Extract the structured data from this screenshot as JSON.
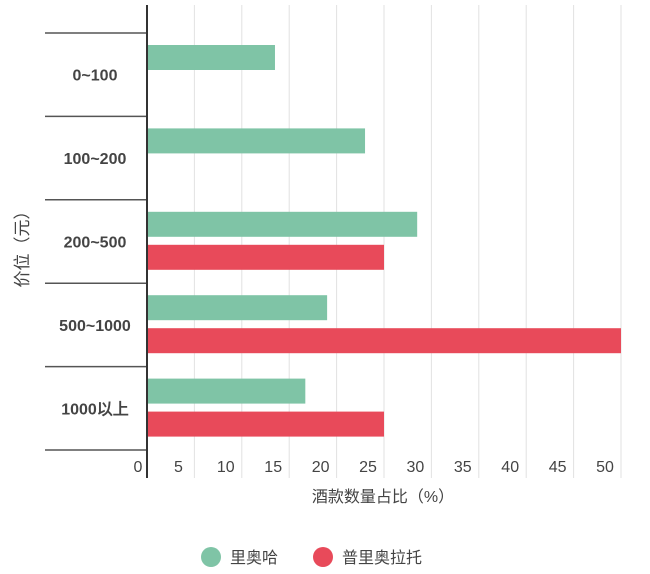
{
  "chart_data": {
    "type": "bar",
    "orientation": "horizontal",
    "categories": [
      "0~100",
      "100~200",
      "200~500",
      "500~1000",
      "1000以上"
    ],
    "series": [
      {
        "name": "里奥哈",
        "color": "#7fc4a6",
        "values": [
          13.5,
          23,
          28.5,
          19,
          16.7
        ]
      },
      {
        "name": "普里奥拉托",
        "color": "#e84a5a",
        "values": [
          null,
          null,
          25,
          50,
          25
        ]
      }
    ],
    "xlabel": "酒款数量占比（%）",
    "ylabel": "价位（元）",
    "xlim": [
      0,
      50
    ],
    "xticks": [
      "0",
      "5",
      "10",
      "15",
      "20",
      "25",
      "30",
      "35",
      "40",
      "45",
      "50"
    ],
    "grid": true,
    "legend": "bottom"
  }
}
